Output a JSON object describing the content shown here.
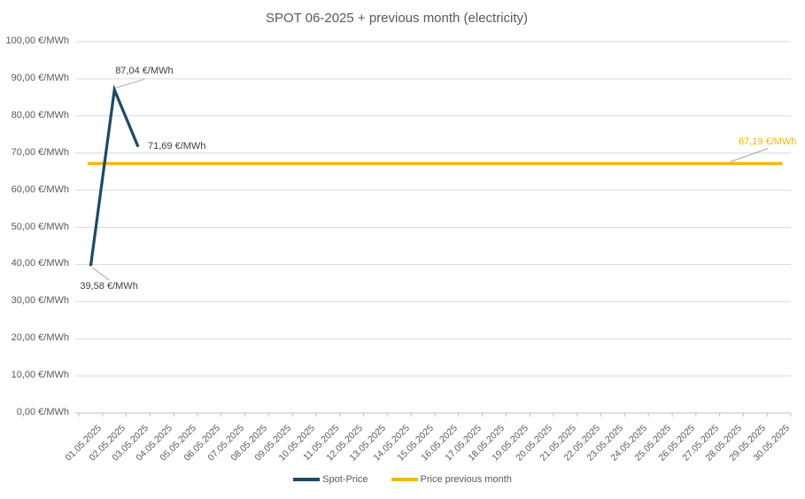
{
  "chart_data": {
    "type": "line",
    "title": "SPOT 06-2025 + previous month (electricity)",
    "x": [
      "01.05.2025",
      "02.05.2025",
      "03.05.2025",
      "04.05.2025",
      "05.05.2025",
      "06.05.2025",
      "07.05.2025",
      "08.05.2025",
      "09.05.2025",
      "10.05.2025",
      "11.05.2025",
      "12.05.2025",
      "13.05.2025",
      "14.05.2025",
      "15.05.2025",
      "16.05.2025",
      "17.05.2025",
      "18.05.2025",
      "19.05.2025",
      "20.05.2025",
      "21.05.2025",
      "22.05.2025",
      "23.05.2025",
      "24.05.2025",
      "25.05.2025",
      "26.05.2025",
      "27.05.2025",
      "28.05.2025",
      "29.05.2025",
      "30.05.2025"
    ],
    "ylim": [
      0,
      100
    ],
    "ytick_step": 10,
    "ytick_labels": [
      "0,00 €/MWh",
      "10,00 €/MWh",
      "20,00 €/MWh",
      "30,00 €/MWh",
      "40,00 €/MWh",
      "50,00 €/MWh",
      "60,00 €/MWh",
      "70,00 €/MWh",
      "80,00 €/MWh",
      "90,00 €/MWh",
      "100,00 €/MWh"
    ],
    "grid": "horizontal",
    "legend_position": "bottom",
    "series": [
      {
        "name": "Spot-Price",
        "color": "#1f4a63",
        "values": [
          39.58,
          87.04,
          71.69
        ]
      },
      {
        "name": "Price previous month",
        "color": "#f5b800",
        "constant": 67.19
      }
    ],
    "annotations": [
      {
        "text": "39,58 €/MWh",
        "series": 0,
        "index": 0,
        "value": 39.58,
        "placement": "below-left",
        "color": "#404040",
        "leader": true
      },
      {
        "text": "87,04 €/MWh",
        "series": 0,
        "index": 1,
        "value": 87.04,
        "placement": "above",
        "color": "#404040",
        "leader": true
      },
      {
        "text": "71,69 €/MWh",
        "series": 0,
        "index": 2,
        "value": 71.69,
        "placement": "right",
        "color": "#404040",
        "leader": false
      },
      {
        "text": "67,19 €/MWh",
        "series": 1,
        "index": 27,
        "value": 67.19,
        "placement": "above-right",
        "color": "#f5b800",
        "leader": true
      }
    ],
    "colors": {
      "gridline": "#d9d9d9",
      "axis_line": "#bfbfbf",
      "axis_text": "#595959",
      "title_text": "#595959",
      "leader_line": "#a6a6a6"
    }
  }
}
